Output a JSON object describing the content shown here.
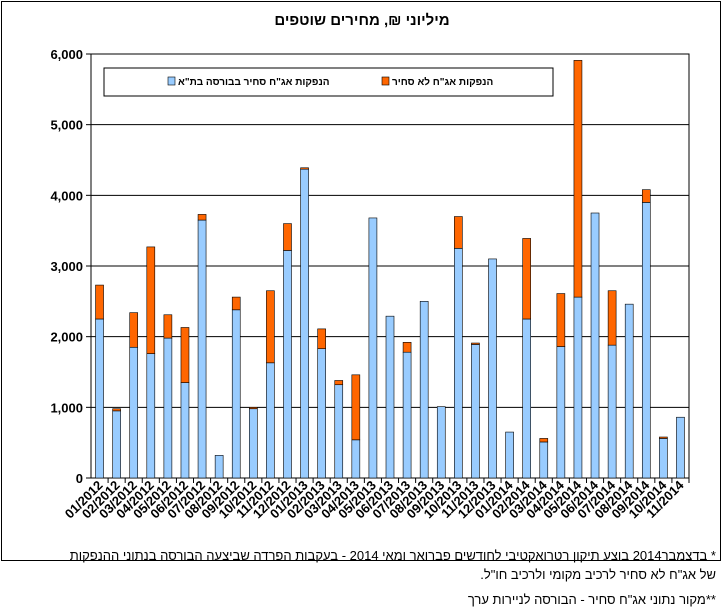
{
  "chart_data": {
    "type": "bar",
    "stacked": true,
    "title": "מיליוני ₪, מחירים שוטפים",
    "categories": [
      "01/2012",
      "02/2012",
      "03/2012",
      "04/2012",
      "05/2012",
      "06/2012",
      "07/2012",
      "08/2012",
      "09/2012",
      "10/2012",
      "11/2012",
      "12/2012",
      "01/2013",
      "02/2013",
      "03/2013",
      "04/2013",
      "05/2013",
      "06/2013",
      "07/2013",
      "08/2013",
      "09/2013",
      "10/2013",
      "11/2013",
      "12/2013",
      "01/2014",
      "02/2014",
      "03/2014",
      "04/2014",
      "05/2014",
      "06/2014",
      "07/2014",
      "08/2014",
      "09/2014",
      "10/2014",
      "11/2014"
    ],
    "series": [
      {
        "name": "הנפקות אג\"ח סחיר בבורסה בת\"א",
        "color": "#99ccff",
        "values": [
          2250,
          950,
          1850,
          1760,
          1980,
          1350,
          3650,
          320,
          2380,
          980,
          1630,
          3220,
          4370,
          1830,
          1320,
          540,
          3680,
          2290,
          1780,
          2500,
          1010,
          3250,
          1890,
          3100,
          650,
          2250,
          510,
          1860,
          2560,
          3750,
          1880,
          2460,
          3900,
          560,
          860
        ]
      },
      {
        "name": "הנפקות אג\"ח לא סחיר",
        "color": "#ff6600",
        "values": [
          480,
          30,
          490,
          1510,
          330,
          780,
          80,
          0,
          180,
          20,
          1020,
          380,
          20,
          280,
          60,
          920,
          0,
          0,
          140,
          0,
          0,
          450,
          20,
          0,
          0,
          1140,
          50,
          750,
          3350,
          0,
          770,
          0,
          180,
          20,
          0
        ]
      }
    ],
    "ylim": [
      0,
      6000
    ],
    "yticks": [
      "0",
      "1,000",
      "2,000",
      "3,000",
      "4,000",
      "5,000",
      "6,000"
    ],
    "grid": true,
    "legend_position": "top"
  },
  "notes": {
    "line1": "* בדצמבר2014 בוצע תיקון רטרואקטיבי לחודשים פברואר ומאי 2014 - בעקבות הפרדה שביצעה הבורסה בנתוני ההנפקות",
    "line2": "של אג\"ח לא סחיר לרכיב מקומי ולרכיב חו\"ל.",
    "line3": "**מקור נתוני אג\"ח סחיר - הבורסה לניירות ערך"
  }
}
